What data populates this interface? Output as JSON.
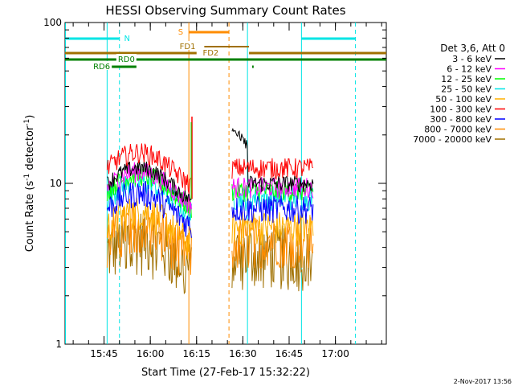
{
  "chart_data": {
    "type": "line",
    "title": "HESSI Observing Summary Count Rates",
    "xlabel": "Start Time (27-Feb-17 15:32:22)",
    "ylabel": "Count Rate (s",
    "ylabel_sup": "-1",
    "ylabel_mid": " detector",
    "ylabel_sup2": "-1",
    "ylabel_end": ")",
    "y_scale": "log",
    "ylim": [
      1,
      100
    ],
    "y_ticks": [
      {
        "value": 1,
        "label": "1"
      },
      {
        "value": 10,
        "label": "10"
      },
      {
        "value": 100,
        "label": "100"
      }
    ],
    "xlim": [
      "15:32:22",
      "17:16:30"
    ],
    "x_ticks": [
      {
        "value": "15:45",
        "label": "15:45"
      },
      {
        "value": "16:00",
        "label": "16:00"
      },
      {
        "value": "16:15",
        "label": "16:15"
      },
      {
        "value": "16:30",
        "label": "16:30"
      },
      {
        "value": "16:45",
        "label": "16:45"
      },
      {
        "value": "17:00",
        "label": "17:00"
      }
    ],
    "legend_title": "Det 3,6, Att 0",
    "legend_position": "right",
    "series": [
      {
        "name": "3 - 6 keV",
        "color": "#000000"
      },
      {
        "name": "6 - 12 keV",
        "color": "#ff00ff"
      },
      {
        "name": "12 - 25 keV",
        "color": "#00ff00"
      },
      {
        "name": "25 - 50 keV",
        "color": "#00e5e5"
      },
      {
        "name": "50 - 100 keV",
        "color": "#ffb000"
      },
      {
        "name": "100 - 300 keV",
        "color": "#ff0000"
      },
      {
        "name": "300 - 800 keV",
        "color": "#0000ff"
      },
      {
        "name": "800 - 7000 keV",
        "color": "#ff8c00"
      },
      {
        "name": "7000 - 20000 keV",
        "color": "#a07000"
      }
    ],
    "segments": [
      {
        "start": "15:46:00",
        "end": "16:13:30"
      },
      {
        "start": "16:26:30",
        "end": "16:53:00"
      }
    ],
    "vertical_markers": [
      {
        "time": "15:32:30",
        "color": "#00e5e5",
        "style": "solid"
      },
      {
        "time": "15:46:00",
        "color": "#00e5e5",
        "style": "solid"
      },
      {
        "time": "15:50:00",
        "color": "#00e5e5",
        "style": "dashed"
      },
      {
        "time": "16:12:30",
        "color": "#ff8c00",
        "style": "solid"
      },
      {
        "time": "16:25:30",
        "color": "#ff8c00",
        "style": "dashed"
      },
      {
        "time": "16:31:30",
        "color": "#00e5e5",
        "style": "solid"
      },
      {
        "time": "16:49:00",
        "color": "#00e5e5",
        "style": "solid"
      },
      {
        "time": "17:06:30",
        "color": "#00e5e5",
        "style": "dashed"
      }
    ],
    "flag_bars": [
      {
        "label": "N",
        "color": "#00e5e5",
        "intervals": [
          [
            "15:32:22",
            "15:50:00"
          ],
          [
            "16:49:00",
            "17:06:30"
          ]
        ],
        "label_at": "15:51:30"
      },
      {
        "label": "S",
        "color": "#ff8c00",
        "intervals": [
          [
            "16:12:30",
            "16:25:30"
          ]
        ],
        "label_at": "16:09:00"
      },
      {
        "label": "FD1",
        "color": "#a07000",
        "intervals": [
          [
            "16:17:30",
            "16:32:00"
          ]
        ],
        "label_at": "16:09:30"
      },
      {
        "label": "FD2",
        "color": "#a07000",
        "intervals": [
          [
            "15:32:22",
            "16:15:00"
          ],
          [
            "16:32:00",
            "17:16:30"
          ]
        ],
        "label_at": "16:17:00"
      },
      {
        "label": "RD0",
        "color": "#008000",
        "intervals": [
          [
            "15:32:22",
            "17:16:30"
          ]
        ],
        "label_at": "15:49:30"
      },
      {
        "label": "RD6",
        "color": "#008000",
        "intervals": [
          [
            "15:47:30",
            "15:55:30"
          ],
          [
            "16:33:00",
            "16:33:30"
          ]
        ],
        "label_at": "15:41:30"
      }
    ]
  },
  "timestamp": "2-Nov-2017 13:56"
}
